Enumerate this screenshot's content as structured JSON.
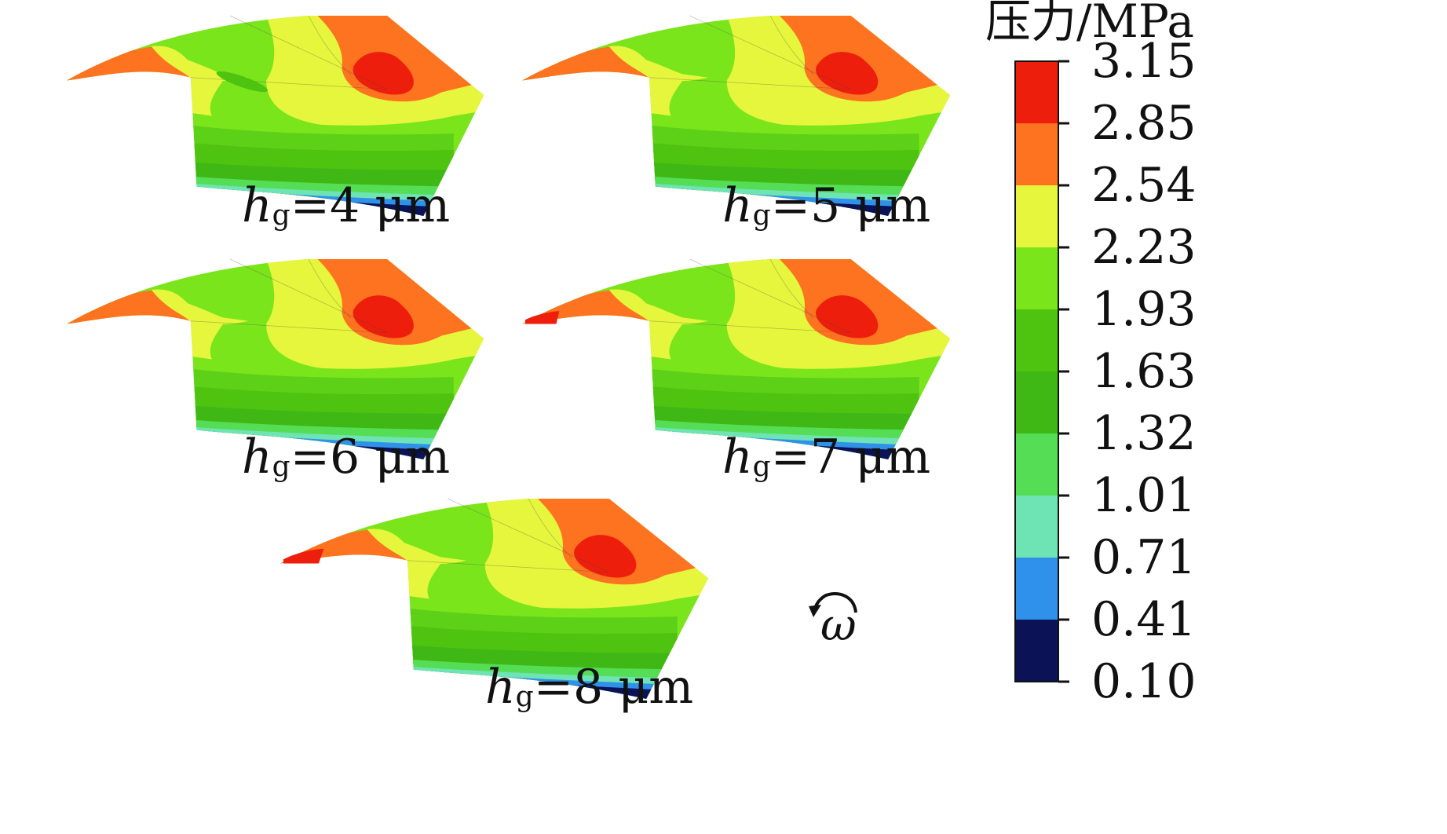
{
  "colorbar": {
    "title": "压力/MPa",
    "ticks": [
      "3.15",
      "2.85",
      "2.54",
      "2.23",
      "1.93",
      "1.63",
      "1.32",
      "1.01",
      "0.71",
      "0.41",
      "0.10"
    ],
    "band_colors": [
      "#ee1e0c",
      "#fd7320",
      "#e6f63c",
      "#7be51c",
      "#4ec310",
      "#3fb816",
      "#55dd55",
      "#6ee3b4",
      "#3091ea",
      "#0b1255"
    ]
  },
  "panels": [
    {
      "var": "h",
      "sub": "g",
      "value": "=4 μm"
    },
    {
      "var": "h",
      "sub": "g",
      "value": "=5 μm"
    },
    {
      "var": "h",
      "sub": "g",
      "value": "=6 μm"
    },
    {
      "var": "h",
      "sub": "g",
      "value": "=7 μm"
    },
    {
      "var": "h",
      "sub": "g",
      "value": "=8 μm"
    }
  ],
  "rotation": {
    "symbol": "ω",
    "icon": "counterclockwise-arrow-icon"
  }
}
